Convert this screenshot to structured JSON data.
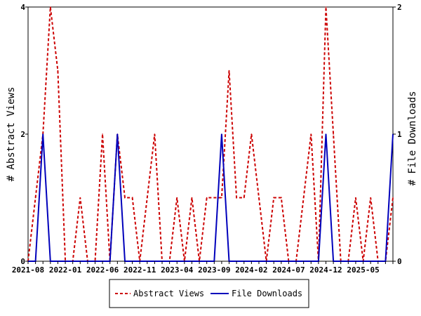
{
  "chart_data": {
    "type": "line",
    "x": [
      "2021-08",
      "2021-09",
      "2021-10",
      "2021-11",
      "2021-12",
      "2022-01",
      "2022-02",
      "2022-03",
      "2022-04",
      "2022-05",
      "2022-06",
      "2022-07",
      "2022-08",
      "2022-09",
      "2022-10",
      "2022-11",
      "2022-12",
      "2023-01",
      "2023-02",
      "2023-03",
      "2023-04",
      "2023-05",
      "2023-06",
      "2023-07",
      "2023-08",
      "2023-09",
      "2023-10",
      "2023-11",
      "2023-12",
      "2024-01",
      "2024-02",
      "2024-03",
      "2024-04",
      "2024-05",
      "2024-06",
      "2024-07",
      "2024-08",
      "2024-09",
      "2024-10",
      "2024-11",
      "2024-12",
      "2025-01",
      "2025-02",
      "2025-03",
      "2025-04",
      "2025-05",
      "2025-06",
      "2025-07",
      "2025-08",
      "2025-09"
    ],
    "x_tick_labels": [
      "2021-08",
      "2022-01",
      "2022-06",
      "2022-11",
      "2023-04",
      "2023-09",
      "2024-02",
      "2024-07",
      "2024-12",
      "2025-05"
    ],
    "series": [
      {
        "name": "Abstract Views",
        "axis": "left",
        "color": "#cc0000",
        "style": "dashed",
        "values": [
          0,
          1,
          2,
          4,
          3,
          0,
          0,
          1,
          0,
          0,
          2,
          0,
          2,
          1,
          1,
          0,
          1,
          2,
          0,
          0,
          1,
          0,
          1,
          0,
          1,
          1,
          1,
          3,
          1,
          1,
          2,
          1,
          0,
          1,
          1,
          0,
          0,
          1,
          2,
          0,
          4,
          2,
          0,
          0,
          1,
          0,
          1,
          0,
          0,
          1
        ]
      },
      {
        "name": "File Downloads",
        "axis": "right",
        "color": "#0000bb",
        "style": "solid",
        "values": [
          0,
          0,
          1,
          0,
          0,
          0,
          0,
          0,
          0,
          0,
          0,
          0,
          1,
          0,
          0,
          0,
          0,
          0,
          0,
          0,
          0,
          0,
          0,
          0,
          0,
          0,
          1,
          0,
          0,
          0,
          0,
          0,
          0,
          0,
          0,
          0,
          0,
          0,
          0,
          0,
          1,
          0,
          0,
          0,
          0,
          0,
          0,
          0,
          0,
          1
        ]
      }
    ],
    "ylabel_left": "# Abstract Views",
    "ylabel_right": "# File Downloads",
    "ylim_left": [
      0,
      4
    ],
    "ylim_right": [
      0,
      2
    ],
    "yticks_left": [
      "0",
      "2",
      "4"
    ],
    "yticks_right": [
      "0",
      "1",
      "2"
    ],
    "grid": false,
    "legend_position": "bottom-center"
  }
}
